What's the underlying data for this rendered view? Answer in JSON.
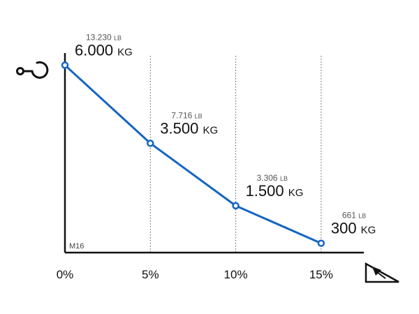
{
  "chart_data": {
    "type": "line",
    "model_label": "M16",
    "x_ticks": [
      "0%",
      "5%",
      "10%",
      "15%"
    ],
    "x": [
      0,
      5,
      10,
      15
    ],
    "xlim": [
      0,
      17.5
    ],
    "ylim": [
      0,
      6300
    ],
    "grid": "vertical-dotted",
    "series": [
      {
        "color": "#1565c0",
        "values": [
          6000,
          3500,
          1500,
          300
        ]
      }
    ],
    "labels": [
      {
        "kg": "6.000",
        "kg_unit": "KG",
        "lb": "13.230",
        "lb_unit": "LB"
      },
      {
        "kg": "3.500",
        "kg_unit": "KG",
        "lb": "7.716",
        "lb_unit": "LB"
      },
      {
        "kg": "1.500",
        "kg_unit": "KG",
        "lb": "3.306",
        "lb_unit": "LB"
      },
      {
        "kg": "300",
        "kg_unit": "KG",
        "lb": "661",
        "lb_unit": "LB"
      }
    ],
    "icons": {
      "y_axis": "crane-hook-icon",
      "x_axis": "slope-incline-icon"
    }
  }
}
